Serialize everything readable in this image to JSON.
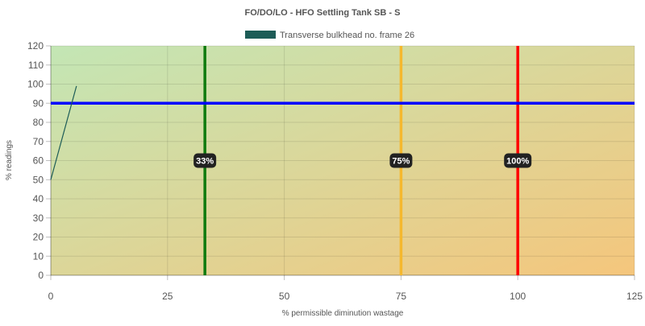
{
  "chart_data": {
    "type": "line",
    "title": "FO/DO/LO - HFO Settling Tank SB - S",
    "xlabel": "% permissible diminution wastage",
    "ylabel": "% readings",
    "xlim": [
      0,
      125
    ],
    "ylim": [
      0,
      120
    ],
    "x_ticks": [
      "0",
      "25",
      "50",
      "75",
      "100",
      "125"
    ],
    "y_ticks": [
      "0",
      "10",
      "20",
      "30",
      "40",
      "50",
      "60",
      "70",
      "80",
      "90",
      "100",
      "110",
      "120"
    ],
    "grid": true,
    "legend_position": "top",
    "series": [
      {
        "name": "Transverse bulkhead no. frame 26",
        "color": "#1d5c57",
        "points": [
          {
            "x": 0,
            "y": 50
          },
          {
            "x": 5.5,
            "y": 99
          }
        ]
      }
    ],
    "threshold_lines": [
      {
        "x": 33,
        "label": "33%",
        "color": "#0e7a0e"
      },
      {
        "x": 75,
        "label": "75%",
        "color": "#f5b82e"
      },
      {
        "x": 100,
        "label": "100%",
        "color": "#ff0000"
      }
    ],
    "reference_line": {
      "y": 90,
      "color": "#0000ff"
    },
    "background_gradient": [
      "#c3e6b5",
      "#f5c67c"
    ]
  }
}
